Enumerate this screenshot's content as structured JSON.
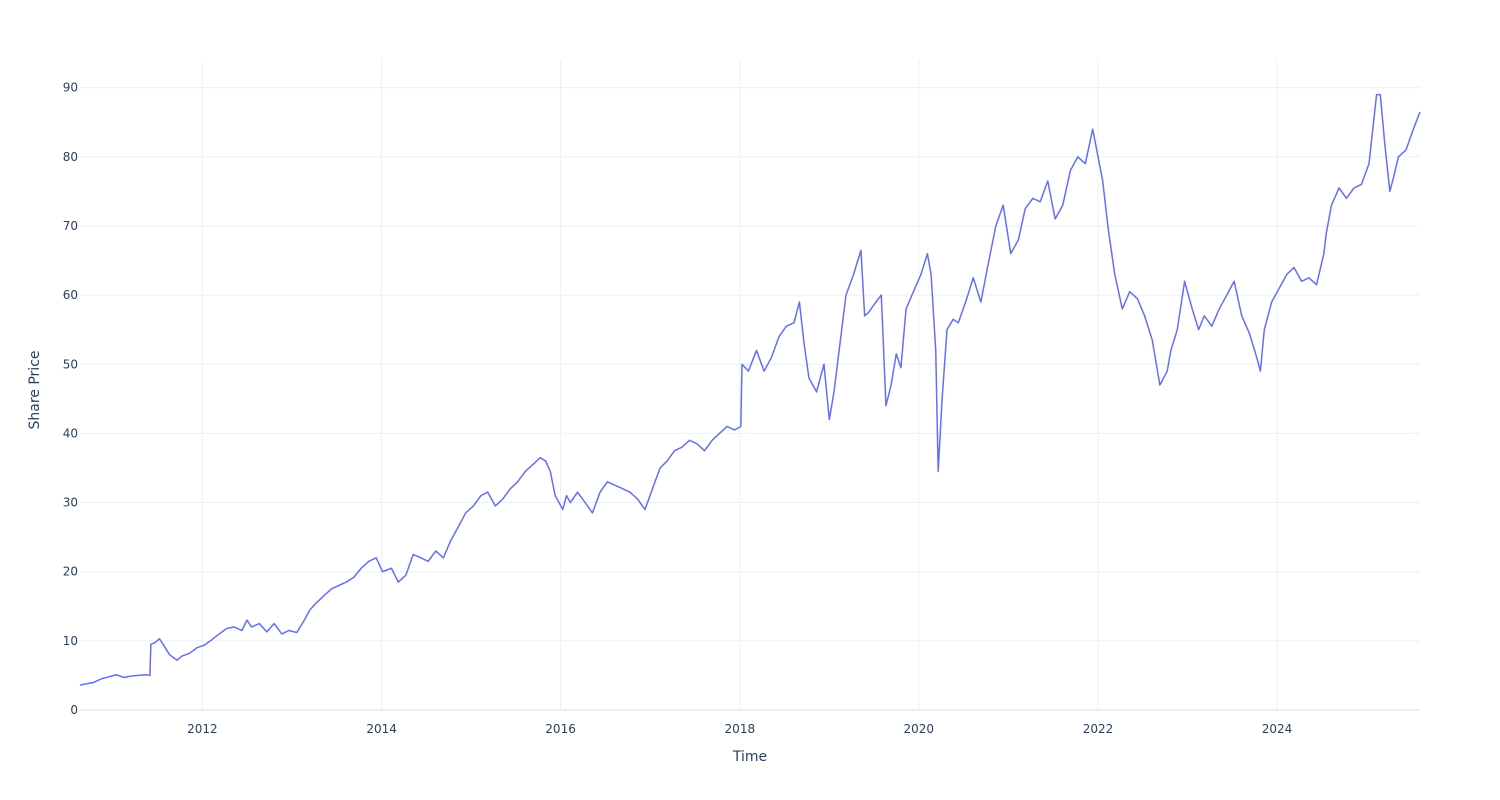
{
  "chart_data": {
    "type": "line",
    "xlabel": "Time",
    "ylabel": "Share Price",
    "xlim": [
      "2010-08-20",
      "2025-08-06"
    ],
    "ylim": [
      0,
      94
    ],
    "x_ticks": [
      "2012",
      "2014",
      "2016",
      "2018",
      "2020",
      "2022",
      "2024"
    ],
    "y_ticks": [
      "0",
      "10",
      "20",
      "30",
      "40",
      "50",
      "60",
      "70",
      "80",
      "90"
    ],
    "grid": true,
    "line_color": "#636efa",
    "series": [
      {
        "x": [
          "2010-08-20",
          "2010-09-15",
          "2010-10-15",
          "2010-11-15",
          "2010-12-15",
          "2011-01-15",
          "2011-02-15",
          "2011-03-15",
          "2011-04-15",
          "2011-05-15",
          "2011-06-01",
          "2011-06-05",
          "2011-06-20",
          "2011-07-10",
          "2011-07-25",
          "2011-08-20",
          "2011-09-20",
          "2011-10-10",
          "2011-11-10",
          "2011-12-10",
          "2012-01-10",
          "2012-02-10",
          "2012-03-10",
          "2012-04-10",
          "2012-05-10",
          "2012-06-10",
          "2012-07-01",
          "2012-07-20",
          "2012-08-20",
          "2012-09-20",
          "2012-10-20",
          "2012-11-20",
          "2012-12-20",
          "2013-01-20",
          "2013-02-20",
          "2013-03-15",
          "2013-04-10",
          "2013-05-10",
          "2013-06-10",
          "2013-07-10",
          "2013-08-10",
          "2013-09-10",
          "2013-10-10",
          "2013-11-10",
          "2013-12-10",
          "2014-01-05",
          "2014-02-10",
          "2014-03-10",
          "2014-04-10",
          "2014-05-10",
          "2014-06-10",
          "2014-07-10",
          "2014-08-10",
          "2014-09-10",
          "2014-10-10",
          "2014-11-10",
          "2014-12-10",
          "2015-01-10",
          "2015-02-10",
          "2015-03-10",
          "2015-04-10",
          "2015-05-10",
          "2015-06-10",
          "2015-07-10",
          "2015-08-10",
          "2015-09-10",
          "2015-10-10",
          "2015-11-01",
          "2015-11-20",
          "2015-12-10",
          "2016-01-10",
          "2016-01-25",
          "2016-02-10",
          "2016-03-10",
          "2016-04-10",
          "2016-05-10",
          "2016-06-10",
          "2016-07-10",
          "2016-08-10",
          "2016-09-10",
          "2016-10-10",
          "2016-11-10",
          "2016-12-10",
          "2017-01-05",
          "2017-01-20",
          "2017-02-10",
          "2017-03-10",
          "2017-04-10",
          "2017-05-10",
          "2017-06-10",
          "2017-07-10",
          "2017-08-10",
          "2017-09-10",
          "2017-10-10",
          "2017-11-10",
          "2017-12-10",
          "2018-01-05",
          "2018-01-10",
          "2018-02-05",
          "2018-03-10",
          "2018-04-10",
          "2018-05-10",
          "2018-06-10",
          "2018-07-10",
          "2018-08-10",
          "2018-09-01",
          "2018-09-20",
          "2018-10-10",
          "2018-11-10",
          "2018-12-10",
          "2019-01-01",
          "2019-01-20",
          "2019-02-10",
          "2019-03-10",
          "2019-04-10",
          "2019-05-10",
          "2019-05-25",
          "2019-06-10",
          "2019-07-10",
          "2019-08-01",
          "2019-08-20",
          "2019-09-10",
          "2019-10-01",
          "2019-10-20",
          "2019-11-10",
          "2019-12-10",
          "2020-01-10",
          "2020-02-05",
          "2020-02-20",
          "2020-03-10",
          "2020-03-20",
          "2020-04-05",
          "2020-04-25",
          "2020-05-20",
          "2020-06-10",
          "2020-07-10",
          "2020-08-10",
          "2020-09-10",
          "2020-10-10",
          "2020-11-10",
          "2020-12-10",
          "2021-01-10",
          "2021-02-10",
          "2021-03-10",
          "2021-04-10",
          "2021-05-10",
          "2021-06-10",
          "2021-07-10",
          "2021-08-10",
          "2021-09-10",
          "2021-10-10",
          "2021-11-10",
          "2021-12-10",
          "2022-01-01",
          "2022-01-20",
          "2022-02-10",
          "2022-03-10",
          "2022-04-10",
          "2022-05-10",
          "2022-06-10",
          "2022-07-10",
          "2022-08-10",
          "2022-09-10",
          "2022-10-10",
          "2022-10-25",
          "2022-11-20",
          "2022-12-20",
          "2023-01-20",
          "2023-02-15",
          "2023-03-10",
          "2023-04-10",
          "2023-05-10",
          "2023-06-10",
          "2023-07-10",
          "2023-08-10",
          "2023-09-10",
          "2023-10-10",
          "2023-10-25",
          "2023-11-10",
          "2023-12-10",
          "2024-01-10",
          "2024-02-10",
          "2024-03-10",
          "2024-04-10",
          "2024-05-10",
          "2024-06-10",
          "2024-07-10",
          "2024-07-20",
          "2024-08-10",
          "2024-09-10",
          "2024-10-10",
          "2024-11-10",
          "2024-12-10",
          "2025-01-10",
          "2025-02-10",
          "2025-02-25",
          "2025-03-15",
          "2025-04-05",
          "2025-04-20",
          "2025-05-10",
          "2025-06-10",
          "2025-07-10",
          "2025-08-06"
        ],
        "y": [
          3.6,
          3.8,
          4.0,
          4.5,
          4.8,
          5.1,
          4.7,
          4.9,
          5.0,
          5.1,
          5.0,
          9.5,
          9.7,
          10.3,
          9.5,
          8.0,
          7.2,
          7.8,
          8.2,
          9.0,
          9.4,
          10.2,
          11.0,
          11.8,
          12.0,
          11.5,
          13.0,
          12.0,
          12.5,
          11.3,
          12.5,
          11.0,
          11.5,
          11.2,
          13.0,
          14.5,
          15.5,
          16.5,
          17.5,
          18.0,
          18.5,
          19.2,
          20.5,
          21.5,
          22.0,
          20.0,
          20.5,
          18.5,
          19.5,
          22.5,
          22.0,
          21.5,
          23.0,
          22.0,
          24.5,
          26.5,
          28.5,
          29.5,
          31.0,
          31.5,
          29.5,
          30.5,
          32.0,
          33.0,
          34.5,
          35.5,
          36.5,
          36.0,
          34.5,
          31.0,
          29.0,
          31.0,
          30.0,
          31.5,
          30.0,
          28.5,
          31.5,
          33.0,
          32.5,
          32.0,
          31.5,
          30.5,
          29.0,
          31.5,
          33.0,
          35.0,
          36.0,
          37.5,
          38.0,
          39.0,
          38.5,
          37.5,
          39.0,
          40.0,
          41.0,
          40.5,
          41.0,
          50.0,
          49.0,
          52.0,
          49.0,
          51.0,
          54.0,
          55.5,
          56.0,
          59.0,
          53.0,
          48.0,
          46.0,
          50.0,
          42.0,
          46.0,
          52.0,
          60.0,
          63.0,
          66.5,
          57.0,
          57.5,
          59.0,
          60.0,
          44.0,
          47.0,
          51.5,
          49.5,
          58.0,
          60.5,
          63.0,
          66.0,
          63.0,
          52.0,
          34.5,
          45.0,
          55.0,
          56.5,
          56.0,
          59.0,
          62.5,
          59.0,
          64.5,
          70.0,
          73.0,
          66.0,
          68.0,
          72.5,
          74.0,
          73.5,
          76.5,
          71.0,
          73.0,
          78.0,
          80.0,
          79.0,
          84.0,
          80.0,
          76.5,
          70.0,
          63.0,
          58.0,
          60.5,
          59.5,
          57.0,
          53.5,
          47.0,
          49.0,
          52.0,
          55.0,
          62.0,
          58.0,
          55.0,
          57.0,
          55.5,
          58.0,
          60.0,
          62.0,
          57.0,
          54.5,
          51.0,
          49.0,
          55.0,
          59.0,
          61.0,
          63.0,
          64.0,
          62.0,
          62.5,
          61.5,
          66.0,
          69.0,
          73.0,
          75.5,
          74.0,
          75.5,
          76.0,
          79.0,
          89.0,
          89.0,
          82.0,
          75.0,
          77.0,
          80.0,
          81.0,
          84.0,
          86.5
        ]
      }
    ]
  }
}
